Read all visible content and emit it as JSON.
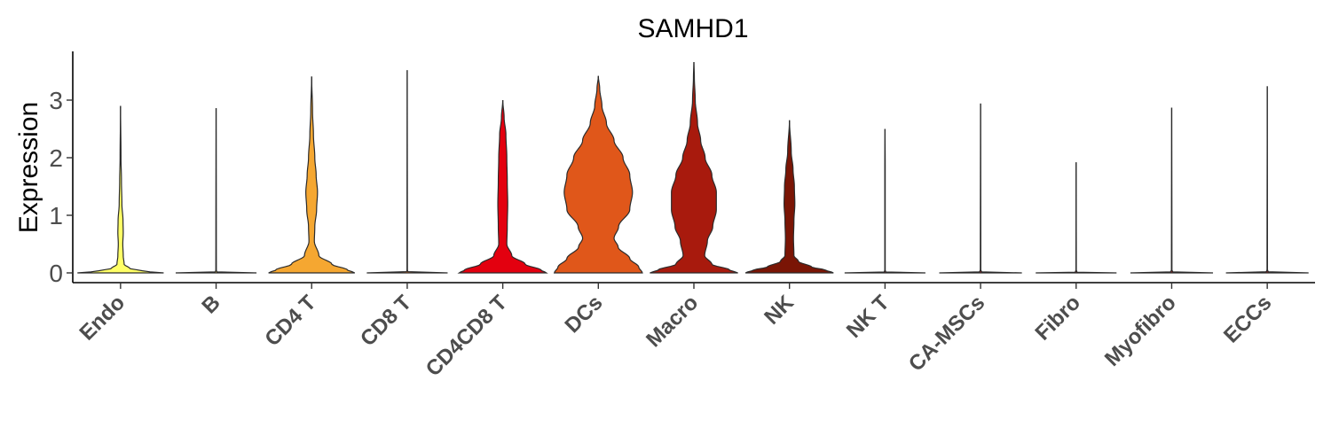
{
  "chart_data": {
    "type": "violin",
    "title": "SAMHD1",
    "xlabel": "",
    "ylabel": "Expression",
    "ylim": [
      -0.2,
      3.75
    ],
    "yticks": [
      "0",
      "1",
      "2",
      "3"
    ],
    "grid": false,
    "legend": "none",
    "categories": [
      "Endo",
      "B",
      "CD4 T",
      "CD8 T",
      "CD4CD8 T",
      "DCs",
      "Macro",
      "NK",
      "NK T",
      "CA-MSCs",
      "Fibro",
      "Myofibro",
      "ECCs"
    ],
    "colors": [
      "#FFFF66",
      "#FFDA4D",
      "#F5A731",
      "#ED7A26",
      "#E3000F",
      "#E0571A",
      "#A81A0D",
      "#7A1505",
      "#8B2323",
      "#8B2323",
      "#8B2323",
      "#8B2323",
      "#8B2323"
    ],
    "max_values": [
      2.9,
      2.86,
      3.41,
      3.52,
      3.0,
      3.42,
      3.66,
      2.65,
      2.5,
      2.94,
      1.92,
      2.87,
      3.24
    ],
    "density_profiles": [
      [
        [
          0,
          0.96
        ],
        [
          0.03,
          0.5
        ],
        [
          0.08,
          0.2
        ],
        [
          0.15,
          0.08
        ],
        [
          0.3,
          0.06
        ],
        [
          0.5,
          0.05
        ],
        [
          0.7,
          0.06
        ],
        [
          0.9,
          0.055
        ],
        [
          1.2,
          0.03
        ],
        [
          1.6,
          0.02
        ],
        [
          2.0,
          0.01
        ],
        [
          2.9,
          0
        ]
      ],
      [
        [
          0,
          0.9
        ],
        [
          0.01,
          0.02
        ],
        [
          0.05,
          0.005
        ],
        [
          0.5,
          0.004
        ],
        [
          2.86,
          0
        ]
      ],
      [
        [
          0,
          0.96
        ],
        [
          0.05,
          0.8
        ],
        [
          0.15,
          0.45
        ],
        [
          0.3,
          0.16
        ],
        [
          0.55,
          0.06
        ],
        [
          0.8,
          0.07
        ],
        [
          1.1,
          0.11
        ],
        [
          1.4,
          0.13
        ],
        [
          1.7,
          0.1
        ],
        [
          2.0,
          0.07
        ],
        [
          2.4,
          0.04
        ],
        [
          2.8,
          0.02
        ],
        [
          3.41,
          0
        ]
      ],
      [
        [
          0,
          0.9
        ],
        [
          0.01,
          0.02
        ],
        [
          0.05,
          0.004
        ],
        [
          3.52,
          0
        ]
      ],
      [
        [
          0,
          0.97
        ],
        [
          0.05,
          0.85
        ],
        [
          0.15,
          0.5
        ],
        [
          0.3,
          0.2
        ],
        [
          0.5,
          0.09
        ],
        [
          0.8,
          0.1
        ],
        [
          1.2,
          0.11
        ],
        [
          1.6,
          0.1
        ],
        [
          2.0,
          0.09
        ],
        [
          2.4,
          0.07
        ],
        [
          2.7,
          0.03
        ],
        [
          3.0,
          0
        ]
      ],
      [
        [
          0,
          0.98
        ],
        [
          0.1,
          0.9
        ],
        [
          0.25,
          0.7
        ],
        [
          0.45,
          0.44
        ],
        [
          0.6,
          0.35
        ],
        [
          0.8,
          0.45
        ],
        [
          1.1,
          0.7
        ],
        [
          1.4,
          0.76
        ],
        [
          1.7,
          0.7
        ],
        [
          2.0,
          0.55
        ],
        [
          2.3,
          0.35
        ],
        [
          2.6,
          0.18
        ],
        [
          2.9,
          0.08
        ],
        [
          3.2,
          0.03
        ],
        [
          3.42,
          0
        ]
      ],
      [
        [
          0,
          0.98
        ],
        [
          0.05,
          0.8
        ],
        [
          0.15,
          0.4
        ],
        [
          0.3,
          0.24
        ],
        [
          0.55,
          0.3
        ],
        [
          0.8,
          0.42
        ],
        [
          1.1,
          0.5
        ],
        [
          1.4,
          0.5
        ],
        [
          1.7,
          0.4
        ],
        [
          2.0,
          0.25
        ],
        [
          2.3,
          0.15
        ],
        [
          2.6,
          0.08
        ],
        [
          3.0,
          0.03
        ],
        [
          3.4,
          0.01
        ],
        [
          3.66,
          0
        ]
      ],
      [
        [
          0,
          0.98
        ],
        [
          0.05,
          0.8
        ],
        [
          0.1,
          0.5
        ],
        [
          0.2,
          0.2
        ],
        [
          0.3,
          0.1
        ],
        [
          0.6,
          0.09
        ],
        [
          0.9,
          0.1
        ],
        [
          1.2,
          0.12
        ],
        [
          1.5,
          0.11
        ],
        [
          1.8,
          0.08
        ],
        [
          2.1,
          0.04
        ],
        [
          2.65,
          0
        ]
      ],
      [
        [
          0,
          0.9
        ],
        [
          0.01,
          0.02
        ],
        [
          0.05,
          0.004
        ],
        [
          1.85,
          0.004
        ],
        [
          2.5,
          0
        ]
      ],
      [
        [
          0,
          0.92
        ],
        [
          0.01,
          0.03
        ],
        [
          0.05,
          0.005
        ],
        [
          2.94,
          0
        ]
      ],
      [
        [
          0,
          0.9
        ],
        [
          0.01,
          0.02
        ],
        [
          0.05,
          0.004
        ],
        [
          1.92,
          0
        ]
      ],
      [
        [
          0,
          0.92
        ],
        [
          0.01,
          0.03
        ],
        [
          0.05,
          0.005
        ],
        [
          2.87,
          0
        ]
      ],
      [
        [
          0,
          0.92
        ],
        [
          0.01,
          0.03
        ],
        [
          0.05,
          0.005
        ],
        [
          3.24,
          0
        ]
      ]
    ]
  }
}
